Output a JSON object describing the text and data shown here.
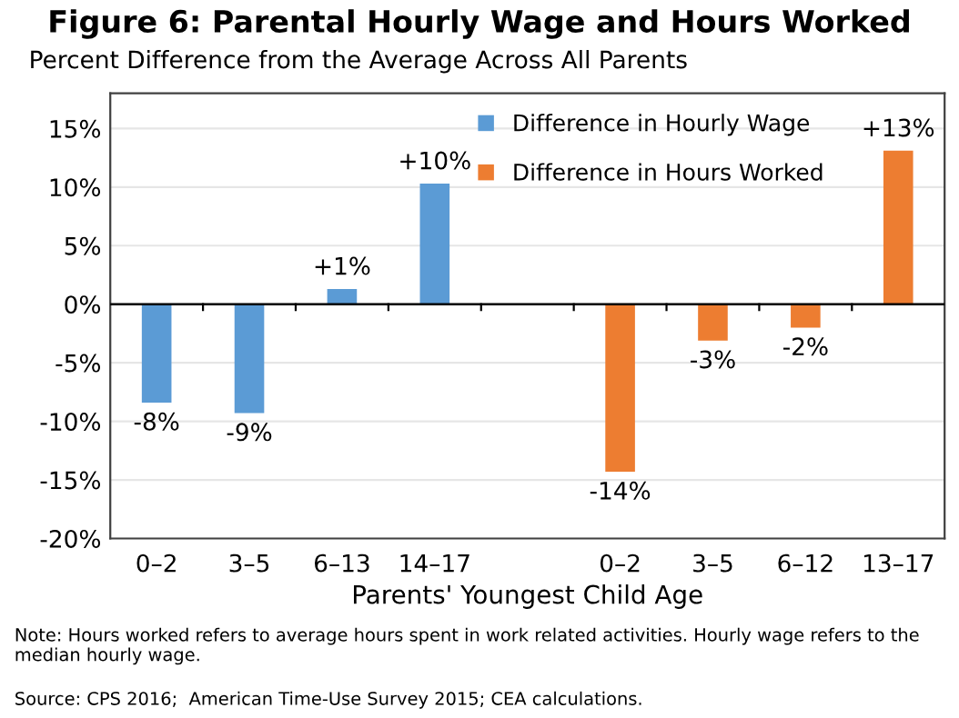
{
  "chart_data": {
    "type": "bar",
    "title": "Figure 6: Parental Hourly Wage and Hours Worked",
    "subtitle": "Percent Difference from the Average Across All Parents",
    "xlabel": "Parents' Youngest Child Age",
    "categories": [
      "0–2",
      "3–5",
      "6–13",
      "14–17",
      null,
      "0–2",
      "3–5",
      "6–12",
      "13–17"
    ],
    "series": [
      {
        "name": "Difference in Hourly Wage",
        "color": "#5b9bd5",
        "values": [
          -8.4,
          -9.3,
          1.3,
          10.3,
          null,
          null,
          null,
          null,
          null
        ],
        "value_labels": [
          "-8%",
          "-9%",
          "+1%",
          "+10%",
          null,
          null,
          null,
          null,
          null
        ]
      },
      {
        "name": "Difference in Hours Worked",
        "color": "#ed7d31",
        "values": [
          null,
          null,
          null,
          null,
          null,
          -14.3,
          -3.1,
          -2.0,
          13.1
        ],
        "value_labels": [
          null,
          null,
          null,
          null,
          null,
          "-14%",
          "-3%",
          "-2%",
          "+13%"
        ]
      }
    ],
    "ylim": [
      -20,
      18
    ],
    "yticks": [
      {
        "value": -20,
        "label": "-20%"
      },
      {
        "value": -15,
        "label": "-15%"
      },
      {
        "value": -10,
        "label": "-10%"
      },
      {
        "value": -5,
        "label": "-5%"
      },
      {
        "value": 0,
        "label": "0%"
      },
      {
        "value": 5,
        "label": "5%"
      },
      {
        "value": 10,
        "label": "10%"
      },
      {
        "value": 15,
        "label": "15%"
      }
    ],
    "grid": "y",
    "legend": "top right",
    "annotations": [
      "Note: Hours worked refers to average hours spent in work related activities. Hourly wage refers to the median hourly wage.",
      "Source: CPS 2016;  American Time-Use Survey 2015; CEA calculations."
    ]
  }
}
